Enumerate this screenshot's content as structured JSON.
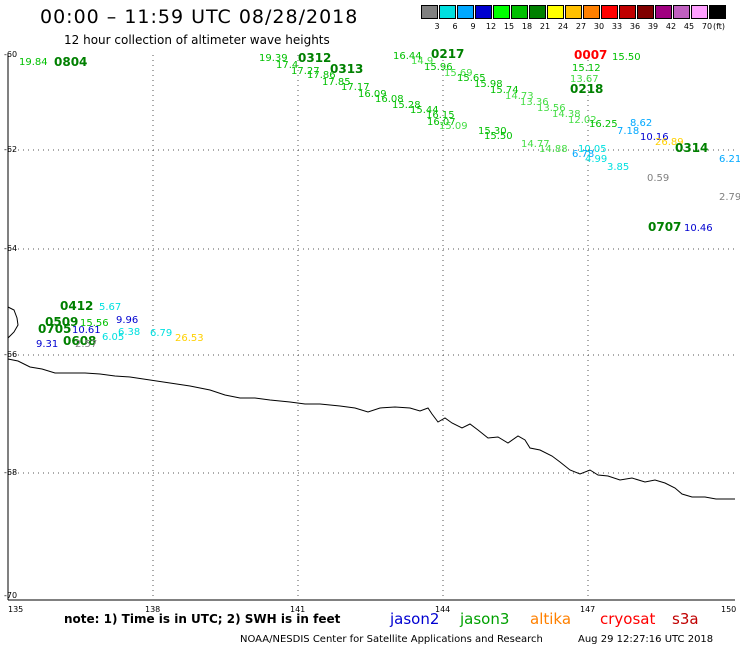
{
  "title": "00:00 – 11:59 UTC 08/28/2018",
  "subtitle": "12 hour collection of altimeter wave heights",
  "colorbar": {
    "unit": "(ft)",
    "swatches": [
      {
        "label": "3",
        "color": "#808080"
      },
      {
        "label": "6",
        "color": "#00e0e0"
      },
      {
        "label": "9",
        "color": "#00a8ff"
      },
      {
        "label": "12",
        "color": "#0000d0"
      },
      {
        "label": "15",
        "color": "#00ff00"
      },
      {
        "label": "18",
        "color": "#00c000"
      },
      {
        "label": "21",
        "color": "#008000"
      },
      {
        "label": "24",
        "color": "#ffff00"
      },
      {
        "label": "27",
        "color": "#ffc000"
      },
      {
        "label": "30",
        "color": "#ff8000"
      },
      {
        "label": "33",
        "color": "#ff0000"
      },
      {
        "label": "36",
        "color": "#c00000"
      },
      {
        "label": "39",
        "color": "#800000"
      },
      {
        "label": "42",
        "color": "#a00080"
      },
      {
        "label": "45",
        "color": "#c060c0"
      },
      {
        "label": "70",
        "color": "#ffa0ff"
      },
      {
        "label": "",
        "color": "#000000"
      }
    ]
  },
  "map": {
    "lon_range": [
      135,
      150
    ],
    "lat_range": [
      -70,
      -60
    ],
    "lat_labels": [
      "-60",
      "-62",
      "-64",
      "-66",
      "-68",
      "-70"
    ],
    "lon_labels": [
      "135",
      "138",
      "141",
      "144",
      "147",
      "150"
    ]
  },
  "observations": [
    {
      "text": "19.84",
      "color": "#00c000",
      "kind": "pt"
    },
    {
      "text": "0804",
      "color": "#008000",
      "kind": "tm"
    },
    {
      "text": "19.39",
      "color": "#00c000",
      "kind": "pt"
    },
    {
      "text": "17.4",
      "color": "#00c000",
      "kind": "pt"
    },
    {
      "text": "0312",
      "color": "#008000",
      "kind": "tm"
    },
    {
      "text": "17.27",
      "color": "#00c000",
      "kind": "pt"
    },
    {
      "text": "17.86",
      "color": "#00c000",
      "kind": "pt"
    },
    {
      "text": "0313",
      "color": "#008000",
      "kind": "tm"
    },
    {
      "text": "17.85",
      "color": "#00c000",
      "kind": "pt"
    },
    {
      "text": "17.17",
      "color": "#00c000",
      "kind": "pt"
    },
    {
      "text": "16.09",
      "color": "#00c000",
      "kind": "pt"
    },
    {
      "text": "16.08",
      "color": "#00c000",
      "kind": "pt"
    },
    {
      "text": "15.28",
      "color": "#00c000",
      "kind": "pt"
    },
    {
      "text": "15.44",
      "color": "#00c000",
      "kind": "pt"
    },
    {
      "text": "16.15",
      "color": "#00c000",
      "kind": "pt"
    },
    {
      "text": "16.07",
      "color": "#00c000",
      "kind": "pt"
    },
    {
      "text": "15.09",
      "color": "#44dd44",
      "kind": "pt"
    },
    {
      "text": "15.30",
      "color": "#00c000",
      "kind": "pt"
    },
    {
      "text": "15.50",
      "color": "#00c000",
      "kind": "pt"
    },
    {
      "text": "14.77",
      "color": "#44dd44",
      "kind": "pt"
    },
    {
      "text": "14.88",
      "color": "#44dd44",
      "kind": "pt"
    },
    {
      "text": "16.44",
      "color": "#00c000",
      "kind": "pt"
    },
    {
      "text": "14.9",
      "color": "#44dd44",
      "kind": "pt"
    },
    {
      "text": "0217",
      "color": "#008000",
      "kind": "tm"
    },
    {
      "text": "15.96",
      "color": "#00c000",
      "kind": "pt"
    },
    {
      "text": "15.69",
      "color": "#44dd44",
      "kind": "pt"
    },
    {
      "text": "15.65",
      "color": "#00c000",
      "kind": "pt"
    },
    {
      "text": "15.98",
      "color": "#00c000",
      "kind": "pt"
    },
    {
      "text": "15.74",
      "color": "#00c000",
      "kind": "pt"
    },
    {
      "text": "14.73",
      "color": "#44dd44",
      "kind": "pt"
    },
    {
      "text": "13.36",
      "color": "#44dd44",
      "kind": "pt"
    },
    {
      "text": "13.56",
      "color": "#44dd44",
      "kind": "pt"
    },
    {
      "text": "14.38",
      "color": "#44dd44",
      "kind": "pt"
    },
    {
      "text": "12.02",
      "color": "#44dd44",
      "kind": "pt"
    },
    {
      "text": "16.25",
      "color": "#00c000",
      "kind": "pt"
    },
    {
      "text": "0007",
      "color": "#ff0000",
      "kind": "tm"
    },
    {
      "text": "15.50",
      "color": "#00c000",
      "kind": "pt"
    },
    {
      "text": "15.12",
      "color": "#00c000",
      "kind": "pt"
    },
    {
      "text": "13.67",
      "color": "#44dd44",
      "kind": "pt"
    },
    {
      "text": "0218",
      "color": "#008000",
      "kind": "tm"
    },
    {
      "text": "8.62",
      "color": "#00a8ff",
      "kind": "pt"
    },
    {
      "text": "7.18",
      "color": "#00a8ff",
      "kind": "pt"
    },
    {
      "text": "10.16",
      "color": "#0000d0",
      "kind": "pt"
    },
    {
      "text": "26.89",
      "color": "#ffd000",
      "kind": "pt"
    },
    {
      "text": "0314",
      "color": "#008000",
      "kind": "tm"
    },
    {
      "text": "10.05",
      "color": "#00e0e0",
      "kind": "pt"
    },
    {
      "text": "6.78",
      "color": "#00a8ff",
      "kind": "pt"
    },
    {
      "text": "4.99",
      "color": "#00e0e0",
      "kind": "pt"
    },
    {
      "text": "3.85",
      "color": "#00e0e0",
      "kind": "pt"
    },
    {
      "text": "6.21",
      "color": "#00a8ff",
      "kind": "pt"
    },
    {
      "text": "0.59",
      "color": "#808080",
      "kind": "pt"
    },
    {
      "text": "2.79",
      "color": "#808080",
      "kind": "pt"
    },
    {
      "text": "0707",
      "color": "#008000",
      "kind": "tm"
    },
    {
      "text": "10.46",
      "color": "#0000d0",
      "kind": "pt"
    },
    {
      "text": "0412",
      "color": "#008000",
      "kind": "tm"
    },
    {
      "text": "5.67",
      "color": "#00e0e0",
      "kind": "pt"
    },
    {
      "text": "0509",
      "color": "#008000",
      "kind": "tm"
    },
    {
      "text": "15.56",
      "color": "#00c000",
      "kind": "pt"
    },
    {
      "text": "9.96",
      "color": "#0000d0",
      "kind": "pt"
    },
    {
      "text": "0705",
      "color": "#008000",
      "kind": "tm"
    },
    {
      "text": "10.61",
      "color": "#0000d0",
      "kind": "pt"
    },
    {
      "text": "6.38",
      "color": "#00e0e0",
      "kind": "pt"
    },
    {
      "text": "6.79",
      "color": "#00e0e0",
      "kind": "pt"
    },
    {
      "text": "6.05",
      "color": "#00e0e0",
      "kind": "pt"
    },
    {
      "text": "26.53",
      "color": "#ffd000",
      "kind": "pt"
    },
    {
      "text": "9.31",
      "color": "#0000d0",
      "kind": "pt"
    },
    {
      "text": "0608",
      "color": "#008000",
      "kind": "tm"
    },
    {
      "text": "2.57",
      "color": "#808080",
      "kind": "pt"
    }
  ],
  "footer": {
    "note": "note:  1) Time is in UTC;  2) SWH is in feet",
    "satellites": [
      {
        "name": "jason2",
        "color": "#0000d0"
      },
      {
        "name": "jason3",
        "color": "#00a000"
      },
      {
        "name": "altika",
        "color": "#ff8000"
      },
      {
        "name": "cryosat",
        "color": "#ff0000"
      },
      {
        "name": "s3a",
        "color": "#c00000"
      }
    ],
    "credit": "NOAA/NESDIS Center for Satellite Applications and Research",
    "timestamp": "Aug 29 12:27:16 UTC 2018"
  }
}
